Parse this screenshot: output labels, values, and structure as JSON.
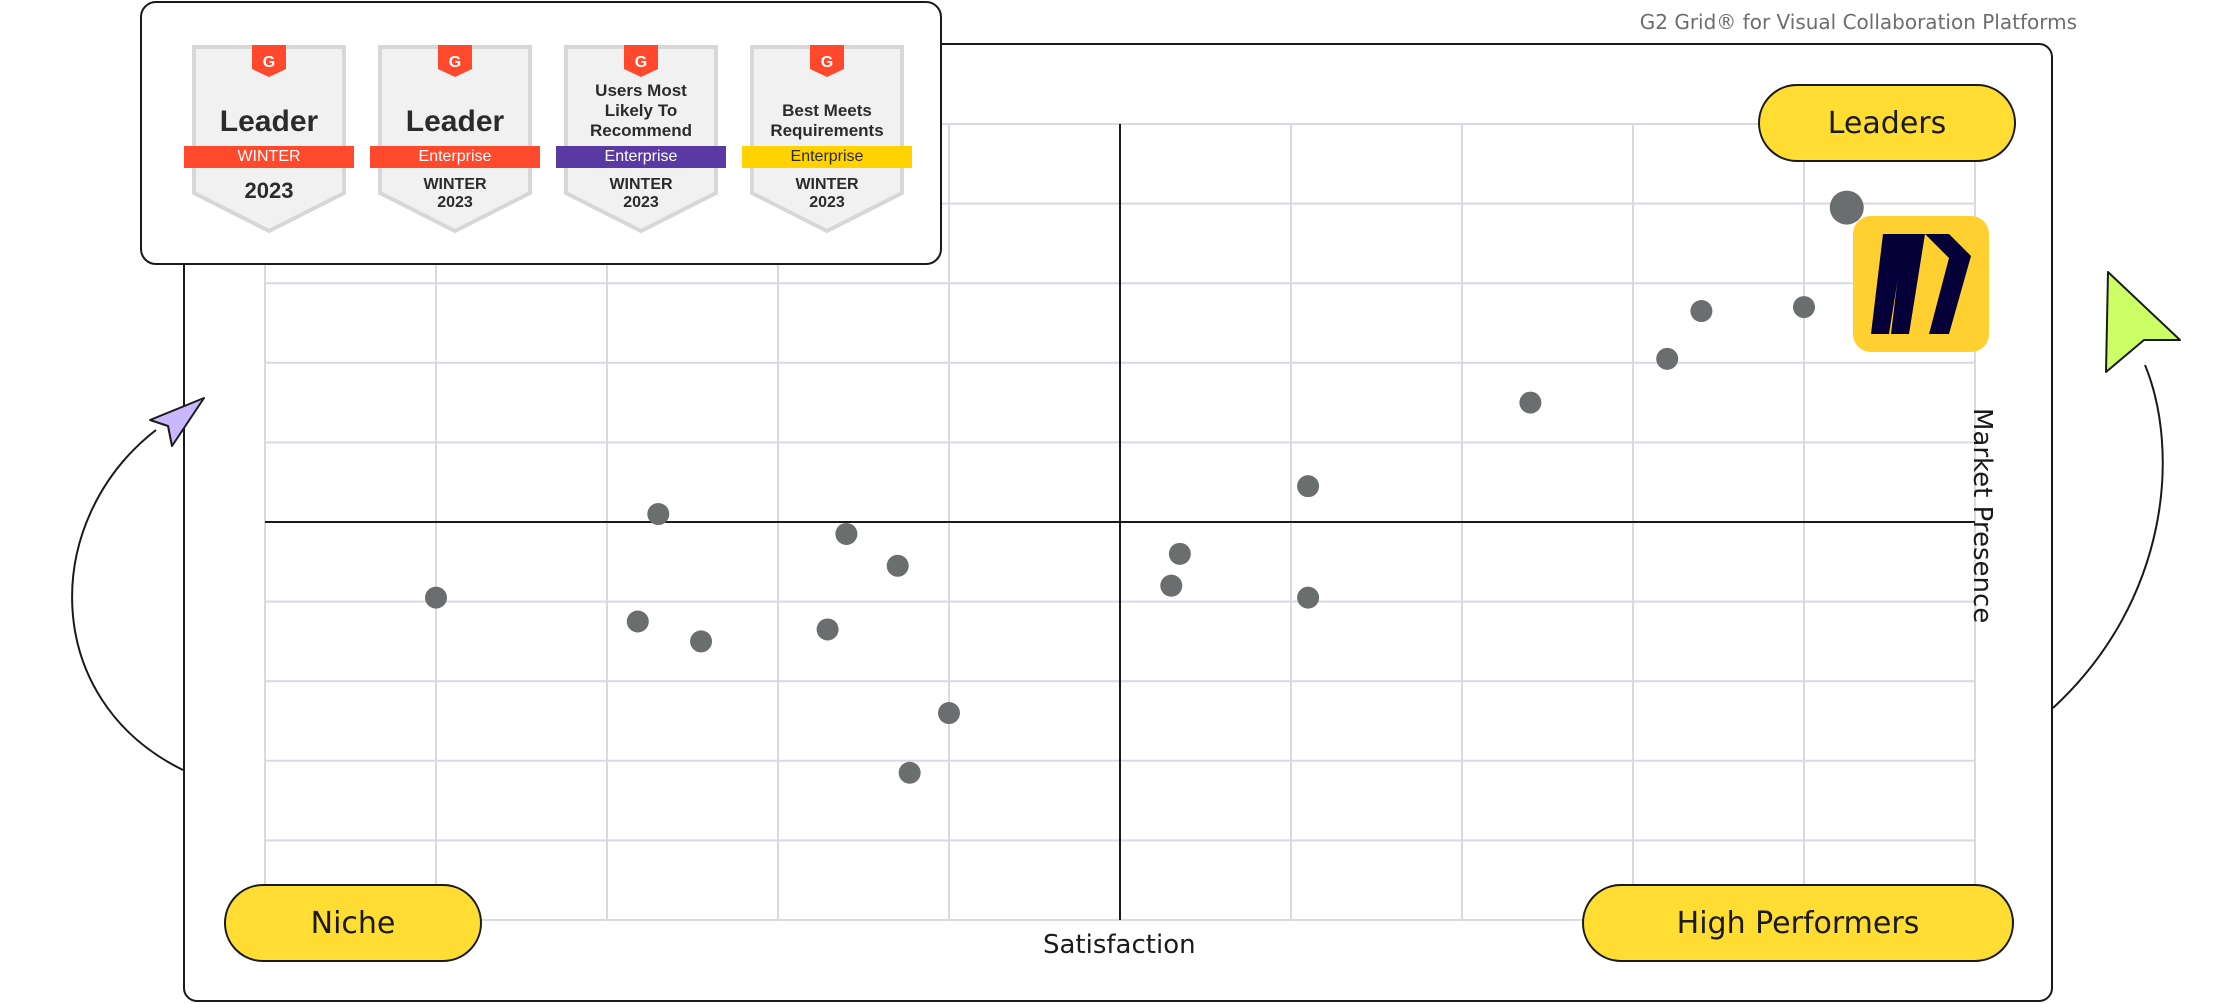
{
  "caption": "G2 Grid® for Visual Collaboration Platforms",
  "badges": [
    {
      "title": "Leader",
      "ribbon": "WINTER",
      "ribbon_color": "#FF492C",
      "season_line1": "2023",
      "season_line2": ""
    },
    {
      "title": "Leader",
      "ribbon": "Enterprise",
      "ribbon_color": "#FF492C",
      "season_line1": "WINTER",
      "season_line2": "2023"
    },
    {
      "title": "Users Most Likely To Recommend",
      "ribbon": "Enterprise",
      "ribbon_color": "#5A39A2",
      "season_line1": "WINTER",
      "season_line2": "2023"
    },
    {
      "title": "Best Meets Requirements",
      "ribbon": "Enterprise",
      "ribbon_color": "#FFD200",
      "season_line1": "WINTER",
      "season_line2": "2023"
    }
  ],
  "quadrants": {
    "leaders": "Leaders",
    "niche": "Niche",
    "high_performers": "High Performers"
  },
  "colors": {
    "accent_yellow": "#FFDD33",
    "dot": "#6B6E6E",
    "grid": "#D9D9E3",
    "miro_yellow": "#FFD02F",
    "miro_navy": "#050038",
    "arrow_purple": "#C9B8FF",
    "arrow_green": "#CCFF66",
    "g2_red": "#FF492C"
  },
  "chart_data": {
    "type": "scatter",
    "title": "",
    "xlabel": "Satisfaction",
    "ylabel": "Market Presence",
    "xlim": [
      0,
      100
    ],
    "ylim": [
      0,
      100
    ],
    "grid": true,
    "points": [
      {
        "x": 92.5,
        "y": 89.5,
        "highlight": true
      },
      {
        "x": 84.0,
        "y": 76.5
      },
      {
        "x": 90.0,
        "y": 77.0
      },
      {
        "x": 82.0,
        "y": 70.5
      },
      {
        "x": 74.0,
        "y": 65.0
      },
      {
        "x": 61.0,
        "y": 54.5
      },
      {
        "x": 53.5,
        "y": 46.0
      },
      {
        "x": 53.0,
        "y": 42.0
      },
      {
        "x": 61.0,
        "y": 40.5
      },
      {
        "x": 23.0,
        "y": 51.0
      },
      {
        "x": 34.0,
        "y": 48.5
      },
      {
        "x": 37.0,
        "y": 44.5
      },
      {
        "x": 10.0,
        "y": 40.5
      },
      {
        "x": 21.8,
        "y": 37.5
      },
      {
        "x": 25.5,
        "y": 35.0
      },
      {
        "x": 32.9,
        "y": 36.5
      },
      {
        "x": 40.0,
        "y": 26.0
      },
      {
        "x": 37.7,
        "y": 18.5
      }
    ]
  }
}
